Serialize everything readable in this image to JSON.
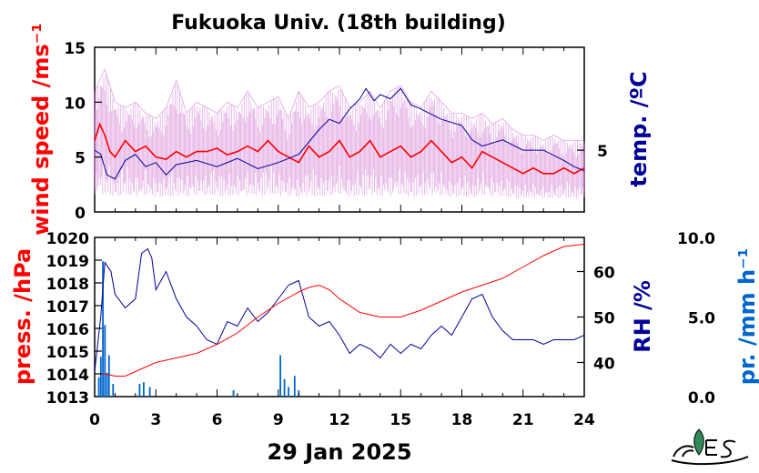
{
  "title": "Fukuoka Univ. (18th building)",
  "date_label": "29 Jan 2025",
  "colors": {
    "wind": "#ff0000",
    "wind_gust": "#cc66cc",
    "temp": "#000099",
    "pressure": "#ff0000",
    "rh": "#000099",
    "precip": "#0066cc",
    "axis": "#000000"
  },
  "chart_data": [
    {
      "type": "line",
      "panel": "top",
      "x_unit": "hour",
      "xlim": [
        0,
        24
      ],
      "left_axis": {
        "label": "wind speed /ms⁻¹",
        "lim": [
          0,
          15
        ],
        "ticks": [
          "0",
          "5",
          "10",
          "15"
        ],
        "tick_values": [
          0,
          5,
          10,
          15
        ]
      },
      "right_axis": {
        "label": "temp. /ºC",
        "lim": [
          2,
          10
        ],
        "ticks": [
          "5"
        ],
        "tick_values": [
          5
        ]
      },
      "series": [
        {
          "role": "wind-mean",
          "axis": "left",
          "x": [
            0,
            0.25,
            0.5,
            0.75,
            1,
            1.5,
            2,
            2.5,
            3,
            3.5,
            4,
            4.5,
            5,
            5.5,
            6,
            6.5,
            7,
            7.5,
            8,
            8.5,
            9,
            9.5,
            10,
            10.5,
            11,
            11.5,
            12,
            12.5,
            13,
            13.5,
            14,
            14.5,
            15,
            15.5,
            16,
            16.5,
            17,
            17.5,
            18,
            18.5,
            19,
            19.5,
            20,
            20.5,
            21,
            21.5,
            22,
            22.5,
            23,
            23.5,
            24
          ],
          "y": [
            6.5,
            8,
            7,
            5.5,
            5,
            6.5,
            5.5,
            6,
            5,
            4.8,
            5.5,
            5,
            5.5,
            5.5,
            5.8,
            5.2,
            5.5,
            6,
            5.5,
            6.5,
            5.5,
            5,
            4.5,
            6,
            5,
            5.5,
            6.5,
            5,
            5.5,
            6.5,
            5,
            5.5,
            6,
            5,
            5.5,
            6.5,
            5.5,
            4.5,
            5,
            4,
            5.5,
            5,
            4.5,
            4,
            3.5,
            4,
            3.5,
            3.5,
            4,
            3.5,
            4
          ]
        },
        {
          "role": "wind-gust-envelope",
          "axis": "left",
          "x": [
            0,
            0.5,
            1,
            1.5,
            2,
            2.5,
            3,
            3.5,
            4,
            4.5,
            5,
            5.5,
            6,
            6.5,
            7,
            7.5,
            8,
            8.5,
            9,
            9.5,
            10,
            10.5,
            11,
            11.5,
            12,
            12.5,
            13,
            13.5,
            14,
            14.5,
            15,
            15.5,
            16,
            16.5,
            17,
            17.5,
            18,
            18.5,
            19,
            19.5,
            20,
            20.5,
            21,
            21.5,
            22,
            22.5,
            23,
            23.5,
            24
          ],
          "y": [
            11,
            13,
            10,
            9.5,
            10,
            9,
            8.5,
            9.5,
            12,
            9,
            10,
            9.5,
            9,
            10,
            9.5,
            11,
            9.5,
            10,
            10.5,
            8.5,
            11,
            9.5,
            10,
            11,
            11.5,
            9.5,
            10,
            11,
            9.5,
            11,
            11.5,
            10,
            9.5,
            11,
            10,
            9,
            9,
            8.5,
            9,
            8,
            8.5,
            7.5,
            7,
            7,
            6.5,
            7,
            6.5,
            6.5,
            6.5
          ]
        },
        {
          "role": "temperature",
          "axis": "right",
          "x": [
            0,
            0.3,
            0.6,
            1,
            1.5,
            2,
            2.5,
            3,
            3.5,
            4,
            5,
            6,
            7,
            8,
            9,
            10,
            11,
            11.5,
            12,
            12.5,
            13,
            13.3,
            13.7,
            14,
            14.5,
            15,
            15.5,
            16,
            17,
            18,
            18.5,
            19,
            20,
            21,
            22,
            23,
            23.5,
            24
          ],
          "y": [
            5,
            4.8,
            3.8,
            3.6,
            4.5,
            4.8,
            4.2,
            4.4,
            3.8,
            4.3,
            4.5,
            4.2,
            4.6,
            4.1,
            4.4,
            4.8,
            6,
            6.5,
            6.3,
            7,
            7.5,
            8,
            7.4,
            7.7,
            7.5,
            8,
            7.2,
            7,
            6.5,
            6.2,
            5.5,
            5.2,
            5.5,
            5,
            5,
            4.5,
            4.2,
            4
          ]
        }
      ]
    },
    {
      "type": "line",
      "panel": "bottom",
      "x_unit": "hour",
      "xlim": [
        0,
        24
      ],
      "xticks": [
        "0",
        "3",
        "6",
        "9",
        "12",
        "15",
        "18",
        "21",
        "24"
      ],
      "xtick_values": [
        0,
        3,
        6,
        9,
        12,
        15,
        18,
        21,
        24
      ],
      "left_axis": {
        "label": "press. /hPa",
        "lim": [
          1013,
          1020
        ],
        "ticks": [
          "1013",
          "1014",
          "1015",
          "1016",
          "1017",
          "1018",
          "1019",
          "1020"
        ],
        "tick_values": [
          1013,
          1014,
          1015,
          1016,
          1017,
          1018,
          1019,
          1020
        ]
      },
      "right_axis": {
        "label": "RH /%",
        "lim": [
          32.5,
          67.5
        ],
        "ticks": [
          "40",
          "50",
          "60"
        ],
        "tick_values": [
          40,
          50,
          60
        ]
      },
      "precip_axis": {
        "label": "pr. /mm h⁻¹",
        "lim": [
          0,
          10
        ],
        "ticks": [
          "0.0",
          "5.0",
          "10.0"
        ],
        "tick_values": [
          0,
          5,
          10
        ]
      },
      "series": [
        {
          "role": "pressure",
          "axis": "left",
          "x": [
            0,
            0.5,
            1,
            1.5,
            2,
            2.5,
            3,
            4,
            5,
            6,
            7,
            8,
            9,
            10,
            10.5,
            11,
            11.5,
            12,
            13,
            14,
            15,
            16,
            17,
            18,
            19,
            20,
            21,
            22,
            23,
            24
          ],
          "y": [
            1014,
            1014,
            1013.9,
            1013.9,
            1014.1,
            1014.3,
            1014.5,
            1014.7,
            1014.9,
            1015.3,
            1015.8,
            1016.5,
            1017.1,
            1017.6,
            1017.8,
            1017.9,
            1017.7,
            1017.3,
            1016.7,
            1016.5,
            1016.5,
            1016.8,
            1017.2,
            1017.6,
            1017.9,
            1018.2,
            1018.7,
            1019.2,
            1019.6,
            1019.7
          ]
        },
        {
          "role": "relative-humidity",
          "axis": "right",
          "x": [
            0,
            0.3,
            0.5,
            0.8,
            1,
            1.5,
            2,
            2.3,
            2.6,
            2.8,
            3,
            3.5,
            4,
            4.5,
            5,
            5.5,
            6,
            6.5,
            7,
            7.5,
            8,
            8.5,
            9,
            9.5,
            10,
            10.5,
            11,
            11.5,
            12,
            12.5,
            13,
            13.5,
            14,
            14.5,
            15,
            15.5,
            16,
            16.5,
            17,
            17.5,
            18,
            18.5,
            19,
            19.5,
            20,
            20.5,
            21,
            21.5,
            22,
            22.5,
            23,
            23.5,
            24
          ],
          "y": [
            38,
            50,
            62,
            60,
            55,
            52,
            54,
            64,
            65,
            63,
            56,
            60,
            54,
            50,
            48,
            45,
            44,
            49,
            48,
            52,
            49,
            51,
            54,
            57,
            58,
            50,
            48,
            49,
            46,
            42,
            44,
            43,
            41,
            44,
            42,
            44,
            43,
            46,
            48,
            46,
            50,
            54,
            55,
            50,
            47,
            45,
            45,
            45,
            44,
            45,
            45,
            45,
            46
          ]
        },
        {
          "role": "precipitation",
          "type": "bar",
          "axis": "precip",
          "x": [
            0.2,
            0.3,
            0.4,
            0.5,
            0.6,
            0.7,
            0.9,
            2.2,
            2.4,
            2.7,
            6.8,
            9.1,
            9.3,
            9.5,
            9.8,
            10.0
          ],
          "y": [
            1.2,
            2.5,
            8.5,
            4.5,
            1.5,
            2.6,
            0.8,
            0.8,
            0.9,
            0.6,
            0.4,
            2.6,
            1.1,
            0.6,
            1.3,
            0.4
          ]
        }
      ]
    }
  ]
}
